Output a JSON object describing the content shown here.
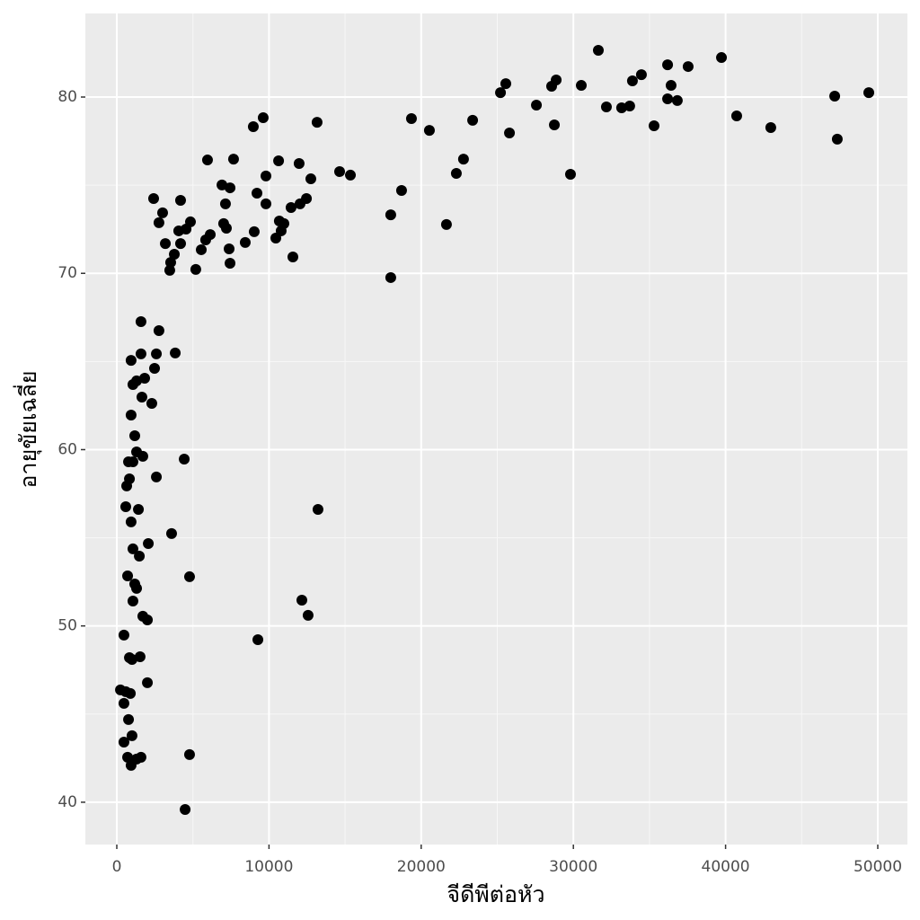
{
  "chart_data": {
    "type": "scatter",
    "x_label": "จีดีพีต่อหัว",
    "y_label": "อายุขัยเฉลี่ย",
    "xlim": [
      -2066,
      51948
    ],
    "ylim": [
      37.6,
      84.74
    ],
    "xticks": [
      0,
      10000,
      20000,
      30000,
      40000,
      50000
    ],
    "yticks": [
      40,
      50,
      60,
      70,
      80
    ],
    "grid": true,
    "color": "#000000",
    "x": [
      31640,
      39730,
      36190,
      37540,
      34470,
      28870,
      33880,
      25560,
      36420,
      30520,
      28570,
      25210,
      49410,
      47170,
      36190,
      36830,
      27570,
      32170,
      33700,
      33170,
      40730,
      19360,
      9620,
      13160,
      23380,
      28750,
      35300,
      42970,
      8970,
      20540,
      25800,
      47340,
      5960,
      7670,
      10630,
      22780,
      11980,
      22310,
      14640,
      15350,
      29810,
      9800,
      6910,
      7440,
      18710,
      12750,
      9210,
      2420,
      4190,
      12460,
      12040,
      7140,
      9800,
      11450,
      3010,
      18000,
      4840,
      2770,
      7020,
      10680,
      10980,
      21660,
      4550,
      7200,
      10800,
      6140,
      4070,
      9030,
      5840,
      4190,
      3190,
      8440,
      10450,
      5550,
      7380,
      3780,
      11570,
      3540,
      7440,
      3480,
      5190,
      18000,
      1590,
      2770,
      3840,
      1590,
      2600,
      940,
      2480,
      1830,
      1300,
      1060,
      1650,
      2300,
      940,
      1180,
      1300,
      1710,
      770,
      1060,
      4430,
      2600,
      830,
      650,
      1420,
      13220,
      590,
      940,
      3600,
      2070,
      1060,
      1480,
      710,
      4780,
      1180,
      1300,
      1060,
      12160,
      1710,
      2010,
      12570,
      470,
      9270,
      830,
      1530,
      1000,
      2010,
      240,
      590,
      890,
      470,
      770,
      1000,
      470,
      710,
      1590,
      1300,
      940,
      4780,
      4490
    ],
    "values": [
      82.65,
      82.24,
      81.83,
      81.73,
      81.27,
      80.97,
      80.92,
      80.76,
      80.66,
      80.66,
      80.61,
      80.25,
      80.25,
      80.05,
      79.9,
      79.8,
      79.54,
      79.44,
      79.49,
      79.39,
      78.93,
      78.78,
      78.83,
      78.57,
      78.68,
      78.42,
      78.37,
      78.27,
      78.32,
      78.11,
      77.96,
      77.61,
      76.43,
      76.48,
      76.38,
      76.48,
      76.23,
      75.67,
      75.77,
      75.57,
      75.62,
      75.52,
      75.01,
      74.85,
      74.7,
      75.36,
      74.55,
      74.24,
      74.14,
      74.24,
      73.94,
      73.94,
      73.94,
      73.73,
      73.43,
      73.32,
      72.92,
      72.87,
      72.82,
      72.97,
      72.82,
      72.77,
      72.51,
      72.56,
      72.41,
      72.2,
      72.41,
      72.36,
      71.9,
      71.69,
      71.69,
      71.75,
      72.0,
      71.34,
      71.39,
      71.08,
      70.93,
      70.62,
      70.57,
      70.17,
      70.22,
      69.76,
      67.26,
      66.75,
      65.48,
      65.43,
      65.43,
      65.06,
      64.61,
      64.05,
      63.9,
      63.69,
      62.98,
      62.62,
      61.96,
      60.79,
      59.87,
      59.62,
      59.31,
      59.31,
      59.46,
      58.45,
      58.34,
      57.94,
      56.61,
      56.61,
      56.76,
      55.9,
      55.24,
      54.67,
      54.37,
      53.96,
      52.84,
      52.79,
      52.38,
      52.13,
      51.41,
      51.46,
      50.55,
      50.34,
      50.6,
      49.48,
      49.22,
      48.2,
      48.25,
      48.1,
      46.78,
      46.37,
      46.27,
      46.17,
      45.61,
      44.69,
      43.77,
      43.41,
      42.55,
      42.55,
      42.45,
      42.09,
      42.7,
      39.59
    ]
  }
}
